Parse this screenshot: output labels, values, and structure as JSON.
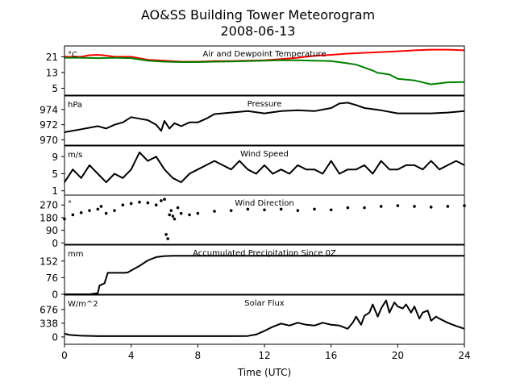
{
  "figure": {
    "title": "AO&SS Building Tower Meteorogram",
    "subtitle": "2008-06-13",
    "xlabel": "Time (UTC)"
  },
  "chart_data": [
    {
      "type": "line",
      "title": "Air and Dewpoint Temperature",
      "unit_label": "°C",
      "ylim": [
        1.5,
        26.5
      ],
      "yticks": [
        5,
        13,
        21
      ],
      "xlim": [
        0,
        24
      ],
      "xticks": [
        0,
        4,
        8,
        12,
        16,
        20,
        24
      ],
      "series": [
        {
          "color": "#ff0000",
          "x": [
            0,
            1,
            1.5,
            2,
            2.5,
            3,
            4,
            5,
            6,
            7,
            8,
            9,
            10,
            11,
            12,
            13,
            14,
            15,
            16,
            17,
            18,
            19,
            20,
            21,
            22,
            23,
            24
          ],
          "values": [
            21,
            21,
            21.8,
            22,
            21.6,
            21,
            21,
            19.5,
            19,
            18.5,
            18.5,
            18.8,
            18.8,
            19,
            19.2,
            19.8,
            20.5,
            21.5,
            22,
            22.6,
            23,
            23.4,
            23.8,
            24.3,
            24.6,
            24.6,
            24.3
          ]
        },
        {
          "color": "#008000",
          "x": [
            0,
            1,
            2,
            3,
            4,
            5,
            6,
            7,
            8,
            9,
            10,
            11,
            12,
            13,
            14,
            15,
            16,
            17,
            17.5,
            18,
            18.5,
            18.8,
            19,
            19.5,
            20,
            21,
            22,
            23,
            24
          ],
          "values": [
            20.5,
            20.5,
            20.3,
            20.5,
            20.3,
            19,
            18.5,
            18.3,
            18.3,
            18.5,
            18.6,
            18.8,
            19,
            19.3,
            19.2,
            19,
            18.8,
            17.7,
            17,
            15.5,
            14,
            12.8,
            12.6,
            12,
            9.8,
            9,
            7,
            8,
            8.2
          ]
        }
      ]
    },
    {
      "type": "line",
      "title": "Pressure",
      "unit_label": "hPa",
      "ylim": [
        969.3,
        975.8
      ],
      "yticks": [
        970,
        972,
        974
      ],
      "xlim": [
        0,
        24
      ],
      "series": [
        {
          "color": "#000000",
          "x": [
            0,
            1,
            2,
            2.5,
            3,
            3.5,
            4,
            4.5,
            5,
            5.5,
            5.8,
            6,
            6.3,
            6.6,
            7,
            7.5,
            8,
            8.5,
            9,
            10,
            11,
            12,
            13,
            14,
            15,
            16,
            16.5,
            17,
            17.5,
            18,
            19,
            20,
            21,
            22,
            23,
            24
          ],
          "values": [
            971,
            971.4,
            971.8,
            971.5,
            972,
            972.3,
            973,
            972.8,
            972.6,
            972,
            971.2,
            972.5,
            971.5,
            972.2,
            971.8,
            972.3,
            972.3,
            972.8,
            973.4,
            973.6,
            973.8,
            973.5,
            973.8,
            973.9,
            973.8,
            974.2,
            974.8,
            974.9,
            974.6,
            974.2,
            973.9,
            973.5,
            973.5,
            973.5,
            973.6,
            973.8
          ]
        }
      ]
    },
    {
      "type": "line",
      "title": "Wind Speed",
      "unit_label": "m/s",
      "ylim": [
        0,
        11.5
      ],
      "yticks": [
        1,
        5,
        9
      ],
      "xlim": [
        0,
        24
      ],
      "series": [
        {
          "color": "#000000",
          "x": [
            0,
            0.5,
            1,
            1.5,
            2,
            2.5,
            3,
            3.5,
            4,
            4.5,
            5,
            5.5,
            6,
            6.5,
            7,
            7.5,
            8,
            8.5,
            9,
            9.5,
            10,
            10.5,
            11,
            11.5,
            12,
            12.5,
            13,
            13.5,
            14,
            14.5,
            15,
            15.5,
            16,
            16.5,
            17,
            17.5,
            18,
            18.5,
            19,
            19.5,
            20,
            20.5,
            21,
            21.5,
            22,
            22.5,
            23,
            23.5,
            24
          ],
          "values": [
            3,
            6,
            4,
            7,
            5,
            3,
            5,
            4,
            6,
            10,
            8,
            9,
            6,
            4,
            3,
            5,
            6,
            7,
            8,
            7,
            6,
            8,
            6,
            5,
            7,
            5,
            6,
            5,
            7,
            6,
            6,
            5,
            8,
            5,
            6,
            6,
            7,
            5,
            8,
            6,
            6,
            7,
            7,
            6,
            8,
            6,
            7,
            8,
            7
          ]
        }
      ]
    },
    {
      "type": "scatter",
      "title": "Wind Direction",
      "unit_label": "°",
      "ylim": [
        -10,
        340
      ],
      "yticks": [
        0,
        90,
        180,
        270
      ],
      "xlim": [
        0,
        24
      ],
      "series": [
        {
          "color": "#000000",
          "x": [
            0,
            0.5,
            1,
            1.5,
            2,
            2.2,
            2.5,
            3,
            3.5,
            4,
            4.5,
            5,
            5.5,
            5.8,
            6,
            6.1,
            6.2,
            6.3,
            6.4,
            6.5,
            6.6,
            6.8,
            7,
            7.5,
            8,
            9,
            10,
            11,
            12,
            13,
            14,
            15,
            16,
            17,
            18,
            19,
            20,
            21,
            22,
            23,
            24
          ],
          "values": [
            170,
            200,
            215,
            230,
            240,
            260,
            210,
            230,
            270,
            280,
            290,
            285,
            270,
            300,
            310,
            60,
            30,
            200,
            230,
            190,
            170,
            250,
            210,
            200,
            210,
            225,
            230,
            240,
            235,
            240,
            230,
            240,
            235,
            250,
            250,
            260,
            265,
            260,
            255,
            260,
            265
          ]
        }
      ]
    },
    {
      "type": "line",
      "title": "Accumulated Precipitation Since 0Z",
      "unit_label": "mm",
      "ylim": [
        0,
        225
      ],
      "yticks": [
        0,
        76,
        152
      ],
      "xlim": [
        0,
        24
      ],
      "series": [
        {
          "color": "#000000",
          "x": [
            0,
            1.5,
            2,
            2.1,
            2.4,
            2.6,
            3.6,
            3.8,
            4.5,
            5,
            5.5,
            6,
            6.5,
            24
          ],
          "values": [
            0,
            0,
            5,
            40,
            50,
            98,
            98,
            100,
            130,
            155,
            170,
            175,
            176,
            176
          ]
        }
      ]
    },
    {
      "type": "line",
      "title": "Solar Flux",
      "unit_label": "W/m^2",
      "ylim": [
        -180,
        1030
      ],
      "yticks": [
        0,
        338,
        676
      ],
      "xlim": [
        0,
        24
      ],
      "series": [
        {
          "color": "#000000",
          "x": [
            0,
            0.3,
            1,
            2,
            4,
            6,
            8,
            10,
            11,
            11.5,
            12,
            12.5,
            13,
            13.5,
            14,
            14.5,
            15,
            15.5,
            16,
            16.5,
            17,
            17.3,
            17.5,
            17.8,
            18,
            18.3,
            18.5,
            18.8,
            19,
            19.3,
            19.5,
            19.8,
            20,
            20.3,
            20.5,
            20.8,
            21,
            21.3,
            21.5,
            21.8,
            22,
            22.3,
            22.5,
            23,
            23.5,
            24
          ],
          "values": [
            80,
            50,
            30,
            20,
            20,
            20,
            20,
            20,
            25,
            60,
            150,
            250,
            330,
            280,
            350,
            300,
            280,
            350,
            300,
            280,
            200,
            350,
            500,
            300,
            520,
            600,
            800,
            500,
            700,
            900,
            600,
            850,
            750,
            700,
            800,
            600,
            750,
            450,
            600,
            650,
            400,
            500,
            450,
            350,
            270,
            200
          ]
        }
      ]
    }
  ]
}
